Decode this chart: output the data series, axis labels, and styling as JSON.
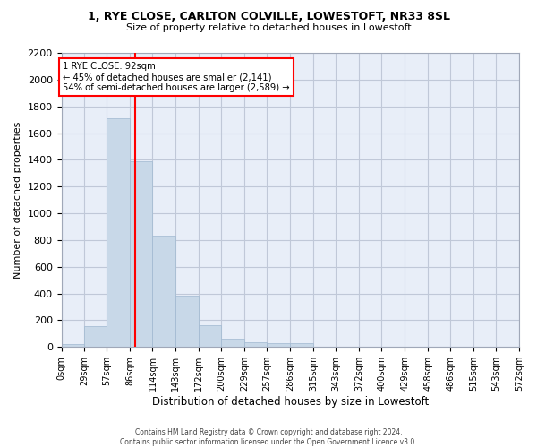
{
  "title_line1": "1, RYE CLOSE, CARLTON COLVILLE, LOWESTOFT, NR33 8SL",
  "title_line2": "Size of property relative to detached houses in Lowestoft",
  "xlabel": "Distribution of detached houses by size in Lowestoft",
  "ylabel": "Number of detached properties",
  "bar_edges": [
    0,
    29,
    57,
    86,
    114,
    143,
    172,
    200,
    229,
    257,
    286,
    315,
    343,
    372,
    400,
    429,
    458,
    486,
    515,
    543,
    572
  ],
  "bar_heights": [
    20,
    155,
    1710,
    1390,
    835,
    385,
    165,
    60,
    35,
    28,
    28,
    0,
    0,
    0,
    0,
    0,
    0,
    0,
    0,
    0
  ],
  "bar_color": "#c8d8e8",
  "bar_edge_color": "#a0b8d0",
  "vline_x": 92,
  "vline_color": "red",
  "annotation_line1": "1 RYE CLOSE: 92sqm",
  "annotation_line2": "← 45% of detached houses are smaller (2,141)",
  "annotation_line3": "54% of semi-detached houses are larger (2,589) →",
  "annotation_box_color": "white",
  "annotation_box_edge": "red",
  "ylim": [
    0,
    2200
  ],
  "yticks": [
    0,
    200,
    400,
    600,
    800,
    1000,
    1200,
    1400,
    1600,
    1800,
    2000,
    2200
  ],
  "grid_color": "#c0c8d8",
  "bg_color": "#e8eef8",
  "footer_line1": "Contains HM Land Registry data © Crown copyright and database right 2024.",
  "footer_line2": "Contains public sector information licensed under the Open Government Licence v3.0."
}
